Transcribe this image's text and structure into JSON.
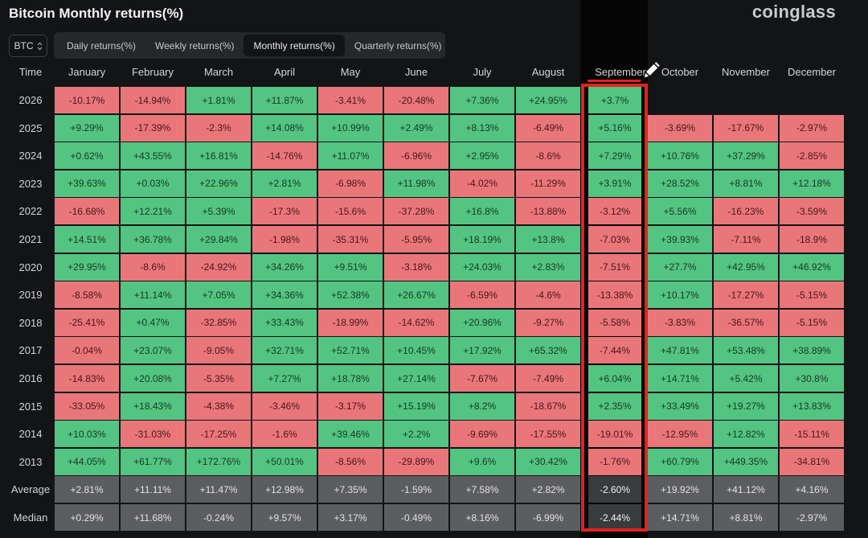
{
  "title": "Bitcoin Monthly returns(%)",
  "brand": "coinglass",
  "asset_selector": {
    "value": "BTC"
  },
  "tabs": [
    {
      "label": "Daily returns(%)",
      "active": false
    },
    {
      "label": "Weekly returns(%)",
      "active": false
    },
    {
      "label": "Monthly returns(%)",
      "active": true
    },
    {
      "label": "Quarterly returns(%)",
      "active": false
    }
  ],
  "columns": [
    "Time",
    "January",
    "February",
    "March",
    "April",
    "May",
    "June",
    "July",
    "August",
    "September",
    "October",
    "November",
    "December"
  ],
  "highlighted_column": "September",
  "colors": {
    "positive": "#54c482",
    "negative": "#e9777a",
    "neutral": "#5c5d60",
    "highlight": "#e0231f"
  },
  "rows": [
    {
      "label": "2026",
      "values": [
        "-10.17%",
        "-14.94%",
        "+1.81%",
        "+11.87%",
        "-3.41%",
        "-20.48%",
        "+7.36%",
        "+24.95%",
        "+3.7%",
        "",
        "",
        ""
      ]
    },
    {
      "label": "2025",
      "values": [
        "+9.29%",
        "-17.39%",
        "-2.3%",
        "+14.08%",
        "+10.99%",
        "+2.49%",
        "+8.13%",
        "-6.49%",
        "+5.16%",
        "-3.69%",
        "-17.67%",
        "-2.97%"
      ]
    },
    {
      "label": "2024",
      "values": [
        "+0.62%",
        "+43.55%",
        "+16.81%",
        "-14.76%",
        "+11.07%",
        "-6.96%",
        "+2.95%",
        "-8.6%",
        "+7.29%",
        "+10.76%",
        "+37.29%",
        "-2.85%"
      ]
    },
    {
      "label": "2023",
      "values": [
        "+39.63%",
        "+0.03%",
        "+22.96%",
        "+2.81%",
        "-6.98%",
        "+11.98%",
        "-4.02%",
        "-11.29%",
        "+3.91%",
        "+28.52%",
        "+8.81%",
        "+12.18%"
      ]
    },
    {
      "label": "2022",
      "values": [
        "-16.68%",
        "+12.21%",
        "+5.39%",
        "-17.3%",
        "-15.6%",
        "-37.28%",
        "+16.8%",
        "-13.88%",
        "-3.12%",
        "+5.56%",
        "-16.23%",
        "-3.59%"
      ]
    },
    {
      "label": "2021",
      "values": [
        "+14.51%",
        "+36.78%",
        "+29.84%",
        "-1.98%",
        "-35.31%",
        "-5.95%",
        "+18.19%",
        "+13.8%",
        "-7.03%",
        "+39.93%",
        "-7.11%",
        "-18.9%"
      ]
    },
    {
      "label": "2020",
      "values": [
        "+29.95%",
        "-8.6%",
        "-24.92%",
        "+34.26%",
        "+9.51%",
        "-3.18%",
        "+24.03%",
        "+2.83%",
        "-7.51%",
        "+27.7%",
        "+42.95%",
        "+46.92%"
      ]
    },
    {
      "label": "2019",
      "values": [
        "-8.58%",
        "+11.14%",
        "+7.05%",
        "+34.36%",
        "+52.38%",
        "+26.67%",
        "-6.59%",
        "-4.6%",
        "-13.38%",
        "+10.17%",
        "-17.27%",
        "-5.15%"
      ]
    },
    {
      "label": "2018",
      "values": [
        "-25.41%",
        "+0.47%",
        "-32.85%",
        "+33.43%",
        "-18.99%",
        "-14.62%",
        "+20.96%",
        "-9.27%",
        "-5.58%",
        "-3.83%",
        "-36.57%",
        "-5.15%"
      ]
    },
    {
      "label": "2017",
      "values": [
        "-0.04%",
        "+23.07%",
        "-9.05%",
        "+32.71%",
        "+52.71%",
        "+10.45%",
        "+17.92%",
        "+65.32%",
        "-7.44%",
        "+47.81%",
        "+53.48%",
        "+38.89%"
      ]
    },
    {
      "label": "2016",
      "values": [
        "-14.83%",
        "+20.08%",
        "-5.35%",
        "+7.27%",
        "+18.78%",
        "+27.14%",
        "-7.67%",
        "-7.49%",
        "+6.04%",
        "+14.71%",
        "+5.42%",
        "+30.8%"
      ]
    },
    {
      "label": "2015",
      "values": [
        "-33.05%",
        "+18.43%",
        "-4.38%",
        "-3.46%",
        "-3.17%",
        "+15.19%",
        "+8.2%",
        "-18.67%",
        "+2.35%",
        "+33.49%",
        "+19.27%",
        "+13.83%"
      ]
    },
    {
      "label": "2014",
      "values": [
        "+10.03%",
        "-31.03%",
        "-17.25%",
        "-1.6%",
        "+39.46%",
        "+2.2%",
        "-9.69%",
        "-17.55%",
        "-19.01%",
        "-12.95%",
        "+12.82%",
        "-15.11%"
      ]
    },
    {
      "label": "2013",
      "values": [
        "+44.05%",
        "+61.77%",
        "+172.76%",
        "+50.01%",
        "-8.56%",
        "-29.89%",
        "+9.6%",
        "+30.42%",
        "-1.76%",
        "+60.79%",
        "+449.35%",
        "-34.81%"
      ]
    }
  ],
  "summary_rows": [
    {
      "label": "Average",
      "values": [
        "+2.81%",
        "+11.11%",
        "+11.47%",
        "+12.98%",
        "+7.35%",
        "-1.59%",
        "+7.58%",
        "+2.82%",
        "-2.60%",
        "+19.92%",
        "+41.12%",
        "+4.16%"
      ]
    },
    {
      "label": "Median",
      "values": [
        "+0.29%",
        "+11.68%",
        "-0.24%",
        "+9.57%",
        "+3.17%",
        "-0.49%",
        "+8.16%",
        "-6.99%",
        "-2.44%",
        "+14.71%",
        "+8.81%",
        "-2.97%"
      ]
    }
  ]
}
